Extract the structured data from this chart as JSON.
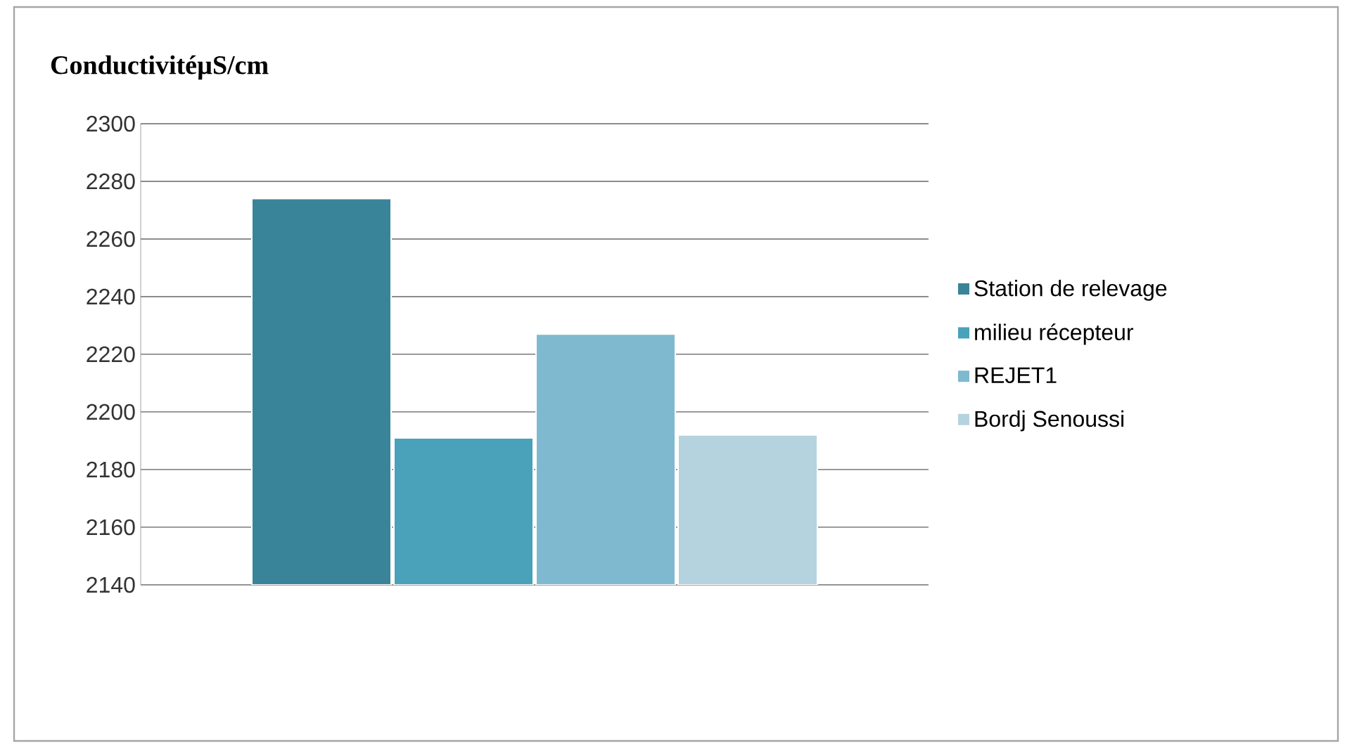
{
  "chart_data": {
    "type": "bar",
    "title": "ConductivitéµS/cm",
    "categories": [
      null
    ],
    "series": [
      {
        "name": "Station de relevage",
        "color": "#3a8499",
        "values": [
          2274
        ]
      },
      {
        "name": "milieu récepteur",
        "color": "#49a1ba",
        "values": [
          2191
        ]
      },
      {
        "name": "REJET1",
        "color": "#7fb9d0",
        "values": [
          2227
        ]
      },
      {
        "name": "Bordj Senoussi",
        "color": "#b5d3df",
        "values": [
          2192
        ]
      }
    ],
    "ylim": [
      2140,
      2300
    ],
    "yticks": [
      2140,
      2160,
      2180,
      2200,
      2220,
      2240,
      2260,
      2280,
      2300
    ],
    "grid": "y",
    "legend": "right",
    "tick_labels": "y"
  }
}
